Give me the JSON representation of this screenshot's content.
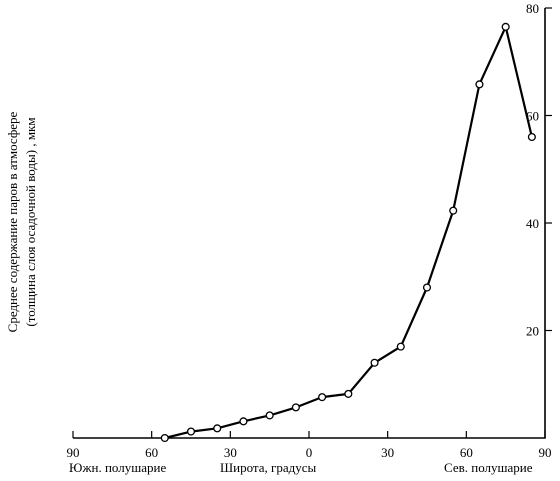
{
  "chart_data": {
    "type": "line",
    "x": [
      -55,
      -45,
      -35,
      -25,
      -15,
      -5,
      5,
      15,
      25,
      35,
      45,
      55,
      65,
      75,
      85
    ],
    "series": [
      {
        "values": [
          0,
          1.2,
          1.8,
          3.1,
          4.2,
          5.7,
          7.6,
          8.2,
          14,
          17,
          28,
          42.3,
          65.8,
          76.5,
          56
        ]
      }
    ],
    "xlim": [
      -90,
      90
    ],
    "ylim": [
      0,
      80
    ],
    "x_ticks": [
      -90,
      -60,
      -30,
      0,
      30,
      60,
      90
    ],
    "x_tick_labels": [
      "90",
      "60",
      "30",
      "0",
      "30",
      "60",
      "90"
    ],
    "y_ticks": [
      20,
      40,
      60,
      80
    ],
    "y_tick_labels": [
      "20",
      "40",
      "60",
      "80"
    ],
    "ylabel_line1": "Среднее содержание паров в атмосфере",
    "ylabel_line2": "(толщина слоя осадочной воды) , мкм",
    "xlabel_center": "Широта, градусы",
    "xlabel_left": "Южн. полушарие",
    "xlabel_right": "Сев. полушарие",
    "grid": false,
    "legend": "none"
  }
}
